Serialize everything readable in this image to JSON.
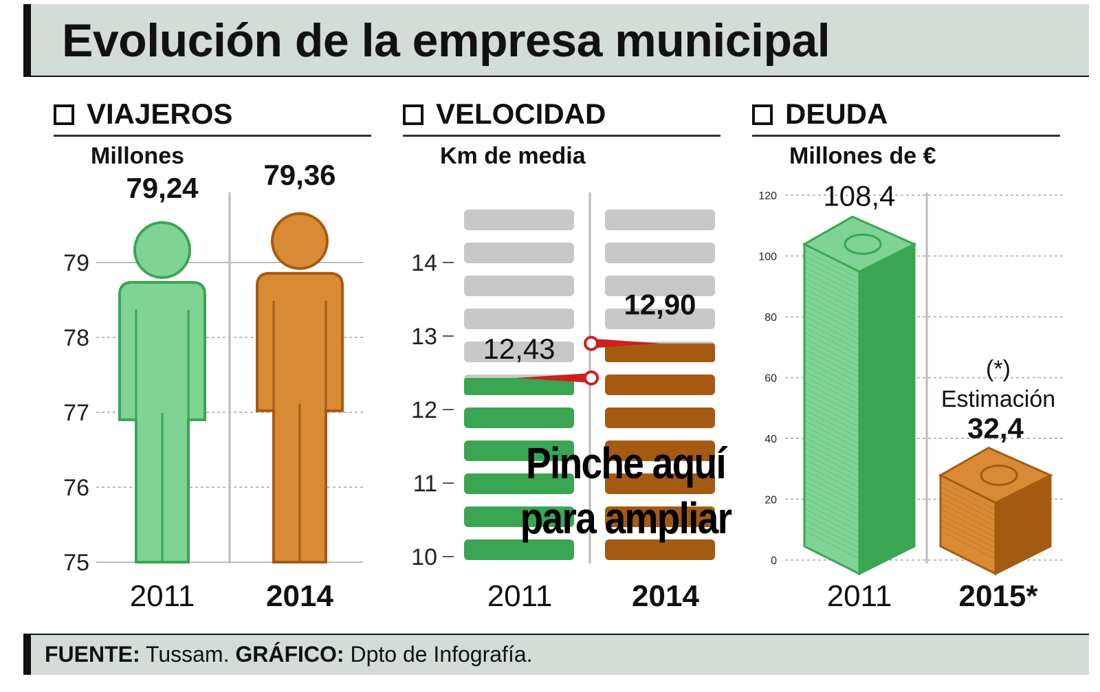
{
  "title": "Evolución de la empresa municipal",
  "overlay": {
    "line1": "Pinche aquí",
    "line2": "para ampliar"
  },
  "footer": {
    "source_label": "FUENTE:",
    "source": "Tussam.",
    "graphic_label": "GRÁFICO:",
    "graphic": "Dpto de Infografía."
  },
  "colors": {
    "green": "#7fd495",
    "green_dark": "#3aa552",
    "orange": "#d98a34",
    "orange_dark": "#a55a12",
    "panel_bg": "#d3dcd7",
    "gray_bar": "#c8c8c8",
    "needle": "#cc1f1f"
  },
  "chart_data": [
    {
      "type": "bar",
      "section": "VIAJEROS",
      "subtitle": "Millones",
      "categories": [
        "2011",
        "2014"
      ],
      "values": [
        79.24,
        79.36
      ],
      "labels": [
        "79,24",
        "79,36"
      ],
      "bold_category": "2014",
      "ylim": [
        75,
        79.4
      ],
      "yticks": [
        "75",
        "76",
        "77",
        "78",
        "79"
      ],
      "ytick_values": [
        75,
        76,
        77,
        78,
        79
      ],
      "series_colors": [
        "green",
        "orange"
      ]
    },
    {
      "type": "bar",
      "section": "VELOCIDAD",
      "subtitle": "Km de media",
      "categories": [
        "2011",
        "2014"
      ],
      "values": [
        12.43,
        12.9
      ],
      "labels": [
        "12,43",
        "12,90"
      ],
      "bold_category": "2014",
      "ylim": [
        10,
        14.5
      ],
      "yticks": [
        "10",
        "11",
        "12",
        "13",
        "14"
      ],
      "ytick_values": [
        10,
        11,
        12,
        13,
        14
      ],
      "series_colors": [
        "green",
        "orange"
      ]
    },
    {
      "type": "bar",
      "section": "DEUDA",
      "subtitle": "Millones de €",
      "categories": [
        "2011",
        "2015*"
      ],
      "values": [
        108.4,
        32.4
      ],
      "labels": [
        "108,4",
        "32,4"
      ],
      "bold_category": "2015*",
      "annotation": [
        "(*)",
        "Estimación"
      ],
      "ylim": [
        0,
        120
      ],
      "yticks": [
        "0",
        "20",
        "40",
        "60",
        "80",
        "100",
        "120"
      ],
      "ytick_values": [
        0,
        20,
        40,
        60,
        80,
        100,
        120
      ],
      "series_colors": [
        "green",
        "orange"
      ]
    }
  ]
}
